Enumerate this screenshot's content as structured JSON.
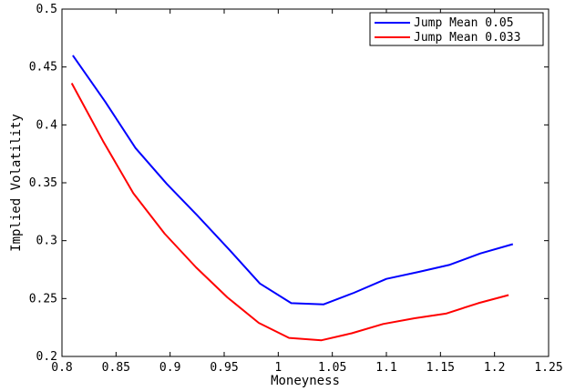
{
  "chart_data": {
    "type": "line",
    "xlabel": "Moneyness",
    "ylabel": "Implied Volatility",
    "xlim": [
      0.8,
      1.25
    ],
    "ylim": [
      0.2,
      0.5
    ],
    "x_ticks": [
      0.8,
      0.85,
      0.9,
      0.95,
      1.0,
      1.05,
      1.1,
      1.15,
      1.2,
      1.25
    ],
    "x_tick_labels": [
      "0.8",
      "0.85",
      "0.9",
      "0.95",
      "1",
      "1.05",
      "1.1",
      "1.15",
      "1.2",
      "1.25"
    ],
    "y_ticks": [
      0.2,
      0.25,
      0.3,
      0.35,
      0.4,
      0.45,
      0.5
    ],
    "y_tick_labels": [
      "0.2",
      "0.25",
      "0.3",
      "0.35",
      "0.4",
      "0.45",
      "0.5"
    ],
    "grid": false,
    "legend_position": "top-right",
    "series": [
      {
        "name": "Jump Mean 0.05",
        "color": "#0000ff",
        "x": [
          0.81,
          0.84,
          0.868,
          0.897,
          0.925,
          0.955,
          0.983,
          1.012,
          1.042,
          1.07,
          1.1,
          1.13,
          1.158,
          1.187,
          1.217
        ],
        "y": [
          0.46,
          0.42,
          0.38,
          0.349,
          0.322,
          0.292,
          0.263,
          0.246,
          0.245,
          0.255,
          0.267,
          0.273,
          0.279,
          0.289,
          0.297
        ]
      },
      {
        "name": "Jump Mean 0.033",
        "color": "#ff0000",
        "x": [
          0.809,
          0.838,
          0.866,
          0.895,
          0.924,
          0.953,
          0.982,
          1.01,
          1.04,
          1.068,
          1.097,
          1.126,
          1.155,
          1.185,
          1.213
        ],
        "y": [
          0.436,
          0.386,
          0.341,
          0.306,
          0.277,
          0.251,
          0.229,
          0.216,
          0.214,
          0.22,
          0.228,
          0.233,
          0.237,
          0.246,
          0.253
        ]
      }
    ]
  }
}
